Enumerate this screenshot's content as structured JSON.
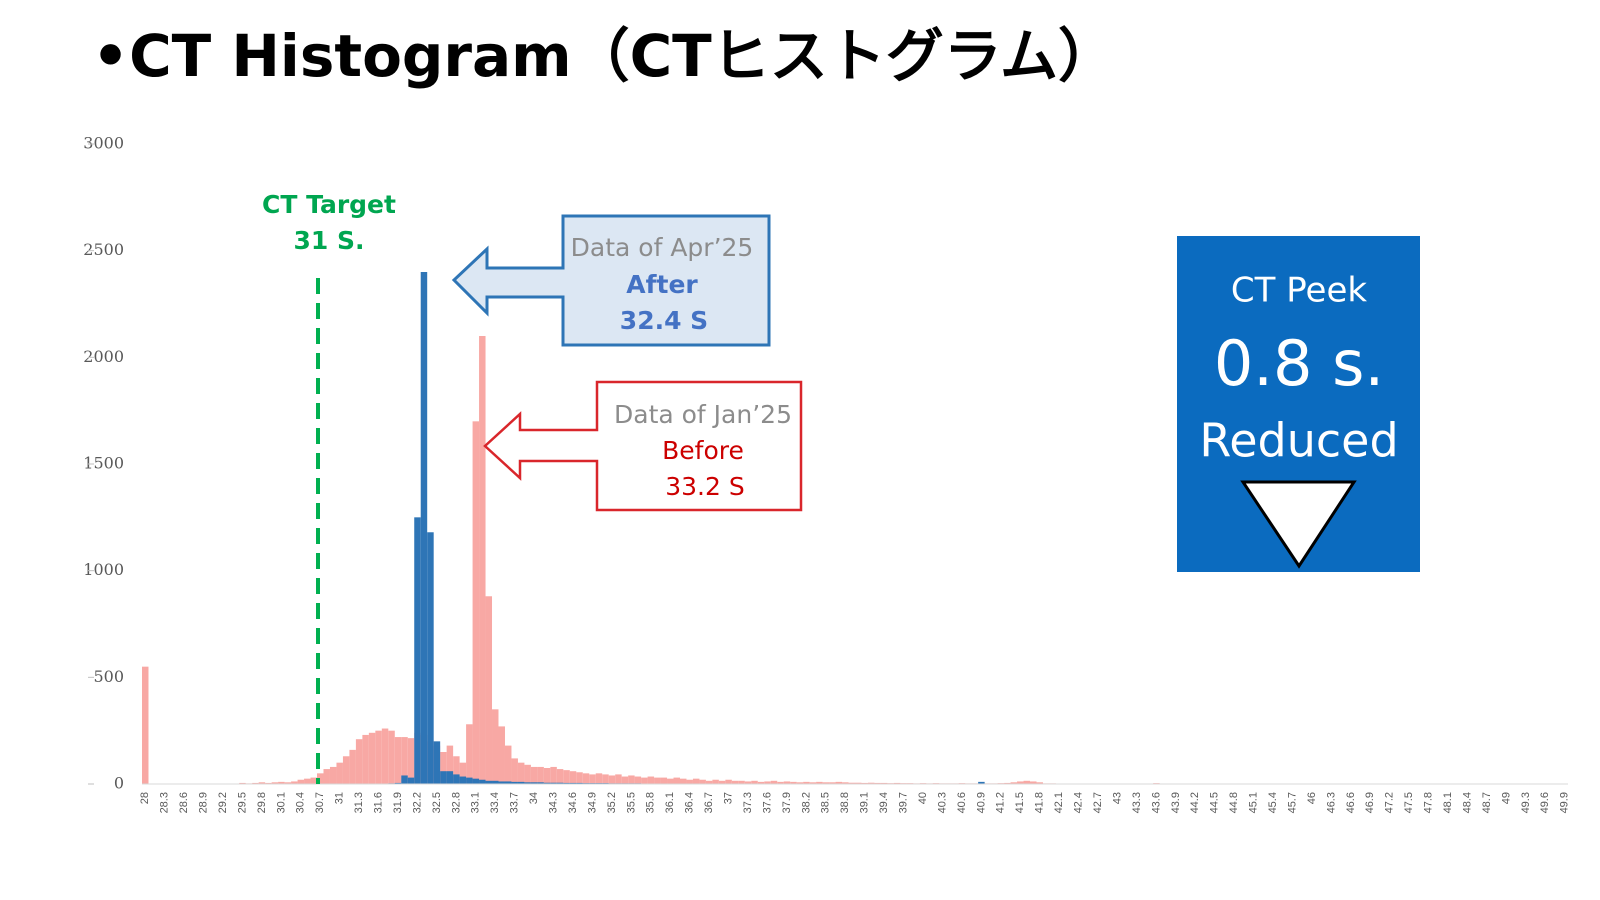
{
  "chart_data": {
    "type": "bar",
    "title": "•CT Histogram（CTヒストグラム）",
    "categories": [
      "28",
      null,
      null,
      "28.3",
      null,
      null,
      "28.6",
      null,
      null,
      "28.9",
      null,
      null,
      "29.2",
      null,
      null,
      "29.5",
      null,
      null,
      "29.8",
      null,
      null,
      "30.1",
      null,
      null,
      "30.4",
      null,
      null,
      "30.7",
      null,
      null,
      "31",
      null,
      null,
      "31.3",
      null,
      null,
      "31.6",
      null,
      null,
      "31.9",
      null,
      null,
      "32.2",
      null,
      null,
      "32.5",
      null,
      null,
      "32.8",
      null,
      null,
      "33.1",
      null,
      null,
      "33.4",
      null,
      null,
      "33.7",
      null,
      null,
      "34",
      null,
      null,
      "34.3",
      null,
      null,
      "34.6",
      null,
      null,
      "34.9",
      null,
      null,
      "35.2",
      null,
      null,
      "35.5",
      null,
      null,
      "35.8",
      null,
      null,
      "36.1",
      null,
      null,
      "36.4",
      null,
      null,
      "36.7",
      null,
      null,
      "37",
      null,
      null,
      "37.3",
      null,
      null,
      "37.6",
      null,
      null,
      "37.9",
      null,
      null,
      "38.2",
      null,
      null,
      "38.5",
      null,
      null,
      "38.8",
      null,
      null,
      "39.1",
      null,
      null,
      "39.4",
      null,
      null,
      "39.7",
      null,
      null,
      "40",
      null,
      null,
      "40.3",
      null,
      null,
      "40.6",
      null,
      null,
      "40.9",
      null,
      null,
      "41.2",
      null,
      null,
      "41.5",
      null,
      null,
      "41.8",
      null,
      null,
      "42.1",
      null,
      null,
      "42.4",
      null,
      null,
      "42.7",
      null,
      null,
      "43",
      null,
      null,
      "43.3",
      null,
      null,
      "43.6",
      null,
      null,
      "43.9",
      null,
      null,
      "44.2",
      null,
      null,
      "44.5",
      null,
      null,
      "44.8",
      null,
      null,
      "45.1",
      null,
      null,
      "45.4",
      null,
      null,
      "45.7",
      null,
      null,
      "46",
      null,
      null,
      "46.3",
      null,
      null,
      "46.6",
      null,
      null,
      "46.9",
      null,
      null,
      "47.2",
      null,
      null,
      "47.5",
      null,
      null,
      "47.8",
      null,
      null,
      "48.1",
      null,
      null,
      "48.4",
      null,
      null,
      "48.7",
      null,
      null,
      "49",
      null,
      null,
      "49.3",
      null,
      null,
      "49.6",
      null,
      null,
      "49.9"
    ],
    "series": [
      {
        "color": "#f8a8a4",
        "values": [
          550,
          0,
          0,
          0,
          0,
          0,
          0,
          0,
          0,
          0,
          0,
          0,
          0,
          0,
          0,
          5,
          3,
          5,
          8,
          5,
          8,
          10,
          8,
          12,
          20,
          25,
          30,
          50,
          70,
          80,
          100,
          130,
          160,
          210,
          230,
          240,
          250,
          260,
          250,
          220,
          220,
          215,
          240,
          230,
          200,
          180,
          150,
          180,
          130,
          100,
          280,
          1700,
          2100,
          880,
          350,
          270,
          180,
          120,
          100,
          90,
          80,
          80,
          75,
          80,
          70,
          65,
          60,
          55,
          50,
          45,
          50,
          45,
          40,
          45,
          35,
          40,
          35,
          30,
          35,
          30,
          30,
          25,
          30,
          25,
          20,
          25,
          20,
          15,
          20,
          15,
          20,
          15,
          15,
          12,
          15,
          10,
          12,
          15,
          10,
          12,
          10,
          8,
          10,
          8,
          10,
          8,
          8,
          10,
          8,
          6,
          6,
          5,
          6,
          5,
          5,
          4,
          5,
          4,
          4,
          3,
          4,
          3,
          4,
          3,
          3,
          3,
          4,
          3,
          3,
          3,
          3,
          3,
          4,
          5,
          8,
          12,
          15,
          12,
          8,
          3,
          3,
          2,
          2,
          2,
          2,
          2,
          2,
          2,
          2,
          2,
          2,
          2,
          2,
          2,
          2,
          2,
          4,
          2,
          2,
          2,
          1,
          1,
          1,
          1,
          1,
          1,
          1,
          1,
          1,
          1,
          1,
          1,
          1,
          1,
          1,
          1,
          1,
          1,
          1,
          1,
          1,
          1,
          1,
          1,
          1,
          1,
          1,
          1,
          1,
          1,
          1,
          1,
          1,
          1,
          1,
          1,
          1,
          1,
          1,
          1,
          1,
          1,
          1,
          1,
          1,
          1,
          1,
          1,
          1,
          1,
          1,
          1,
          1,
          1,
          1,
          1,
          1,
          1,
          1,
          1
        ]
      },
      {
        "color": "#2e75b6",
        "values": [
          0,
          0,
          0,
          0,
          0,
          0,
          0,
          0,
          0,
          0,
          0,
          0,
          0,
          0,
          0,
          0,
          0,
          0,
          0,
          0,
          0,
          0,
          0,
          0,
          0,
          0,
          0,
          0,
          0,
          0,
          0,
          0,
          0,
          0,
          0,
          0,
          0,
          0,
          3,
          5,
          40,
          30,
          1250,
          2400,
          1180,
          200,
          60,
          60,
          45,
          35,
          30,
          25,
          20,
          15,
          15,
          12,
          12,
          10,
          10,
          8,
          8,
          8,
          6,
          6,
          6,
          5,
          5,
          5,
          4,
          4,
          4,
          4,
          3,
          3,
          3,
          3,
          3,
          2,
          2,
          2,
          2,
          2,
          1,
          2,
          2,
          1,
          2,
          2,
          1,
          2,
          2,
          1,
          2,
          2,
          1,
          2,
          1,
          2,
          1,
          1,
          2,
          1,
          1,
          2,
          1,
          1,
          2,
          1,
          1,
          1,
          1,
          2,
          1,
          1,
          1,
          2,
          1,
          1,
          1,
          1,
          2,
          1,
          2,
          1,
          1,
          1,
          2,
          1,
          1,
          10,
          1,
          1,
          2,
          1,
          1,
          1,
          2,
          1,
          1,
          1,
          1,
          2,
          1,
          1,
          1,
          1,
          2,
          1,
          1,
          1,
          1,
          1,
          2,
          1,
          1,
          1,
          1,
          2,
          1,
          1,
          1,
          1,
          1,
          2,
          1,
          1,
          1,
          1,
          1,
          2,
          1,
          1,
          1,
          1,
          2,
          1,
          1,
          1,
          1,
          1,
          2,
          1,
          1,
          1,
          1,
          1,
          1,
          2,
          1,
          1,
          1,
          1,
          1,
          2,
          1,
          1,
          1,
          1,
          1,
          1,
          1,
          2,
          1,
          1,
          1,
          1,
          1,
          1,
          2,
          1,
          1,
          1,
          1,
          1,
          1,
          2,
          1,
          1,
          1,
          1
        ]
      }
    ],
    "ylim": [
      0,
      3000
    ],
    "yticks": [
      0,
      500,
      1000,
      1500,
      2000,
      2500,
      3000
    ],
    "grid": false,
    "annotations": {
      "target_title": "CT Target",
      "target_value": "31 S.",
      "after_caption": "Data of Apr’25",
      "after_label": "After",
      "after_value": "32.4 S",
      "before_caption": "Data of Jan’25",
      "before_label": "Before",
      "before_value": "33.2 S",
      "peak_title": "CT  Peek",
      "peak_value": "0.8  s.",
      "peak_label": "Reduced"
    }
  }
}
